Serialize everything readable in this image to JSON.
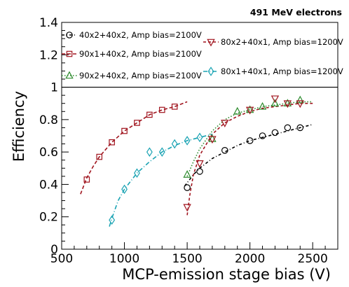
{
  "chart_data": {
    "type": "line",
    "title": "491 MeV electrons",
    "xlabel": "MCP-emission stage bias (V)",
    "ylabel": "Efficiency",
    "xlim": [
      500,
      2700
    ],
    "ylim": [
      0,
      1.4
    ],
    "xticks": [
      500,
      1000,
      1500,
      2000,
      2500
    ],
    "yticks": [
      0,
      0.2,
      0.4,
      0.6,
      0.8,
      1,
      1.2,
      1.4
    ],
    "reference_line": 1,
    "grid": false,
    "series": [
      {
        "name": "40x2+40x2, Amp bias=2100V",
        "color": "#000000",
        "marker": "circle",
        "x": [
          1500,
          1600,
          1800,
          2000,
          2100,
          2200,
          2300,
          2400
        ],
        "y": [
          0.38,
          0.48,
          0.61,
          0.67,
          0.7,
          0.72,
          0.75,
          0.75
        ],
        "fit_x": [
          1480,
          1500,
          1550,
          1600,
          1700,
          1800,
          1900,
          2000,
          2100,
          2200,
          2300,
          2400,
          2500
        ],
        "fit_y": [
          0.39,
          0.41,
          0.46,
          0.5,
          0.56,
          0.6,
          0.64,
          0.67,
          0.69,
          0.71,
          0.73,
          0.75,
          0.77
        ]
      },
      {
        "name": "90x1+40x2, Amp bias=2100V",
        "color": "#a0141e",
        "marker": "square",
        "x": [
          700,
          800,
          900,
          1000,
          1100,
          1200,
          1300,
          1400
        ],
        "y": [
          0.43,
          0.57,
          0.66,
          0.73,
          0.78,
          0.83,
          0.86,
          0.88
        ],
        "fit_x": [
          650,
          700,
          750,
          800,
          900,
          1000,
          1100,
          1200,
          1300,
          1400,
          1500
        ],
        "fit_y": [
          0.34,
          0.44,
          0.51,
          0.57,
          0.66,
          0.73,
          0.78,
          0.83,
          0.86,
          0.88,
          0.91
        ]
      },
      {
        "name": "90x2+40x2, Amp bias=2100V",
        "color": "#2e8b2e",
        "marker": "triangle-up",
        "x": [
          1500,
          1700,
          1900,
          2000,
          2100,
          2200,
          2300,
          2400
        ],
        "y": [
          0.46,
          0.68,
          0.85,
          0.86,
          0.88,
          0.9,
          0.9,
          0.92
        ],
        "fit_x": [
          1500,
          1550,
          1600,
          1700,
          1800,
          1900,
          2000,
          2100,
          2200,
          2300,
          2400,
          2500
        ],
        "fit_y": [
          0.45,
          0.54,
          0.62,
          0.73,
          0.8,
          0.84,
          0.86,
          0.88,
          0.89,
          0.9,
          0.91,
          0.91
        ]
      },
      {
        "name": "80x2+40x1, Amp bias=1200V",
        "color": "#a0141e",
        "marker": "triangle-down",
        "x": [
          1500,
          1600,
          1700,
          1800,
          2000,
          2200,
          2300,
          2400
        ],
        "y": [
          0.26,
          0.53,
          0.68,
          0.78,
          0.86,
          0.93,
          0.9,
          0.9
        ],
        "fit_x": [
          1500,
          1520,
          1550,
          1600,
          1700,
          1800,
          1900,
          2000,
          2100,
          2200,
          2300,
          2400,
          2500
        ],
        "fit_y": [
          0.21,
          0.33,
          0.46,
          0.58,
          0.71,
          0.78,
          0.82,
          0.85,
          0.87,
          0.88,
          0.89,
          0.9,
          0.9
        ]
      },
      {
        "name": "80x1+40x1, Amp bias=1200V",
        "color": "#1aa3b3",
        "marker": "diamond",
        "x": [
          900,
          1000,
          1100,
          1200,
          1300,
          1400,
          1500,
          1600
        ],
        "y": [
          0.18,
          0.37,
          0.47,
          0.6,
          0.6,
          0.65,
          0.67,
          0.69
        ],
        "fit_x": [
          880,
          900,
          950,
          1000,
          1100,
          1200,
          1300,
          1400,
          1500,
          1600,
          1700
        ],
        "fit_y": [
          0.14,
          0.19,
          0.3,
          0.37,
          0.47,
          0.54,
          0.6,
          0.64,
          0.67,
          0.69,
          0.71
        ]
      }
    ]
  }
}
